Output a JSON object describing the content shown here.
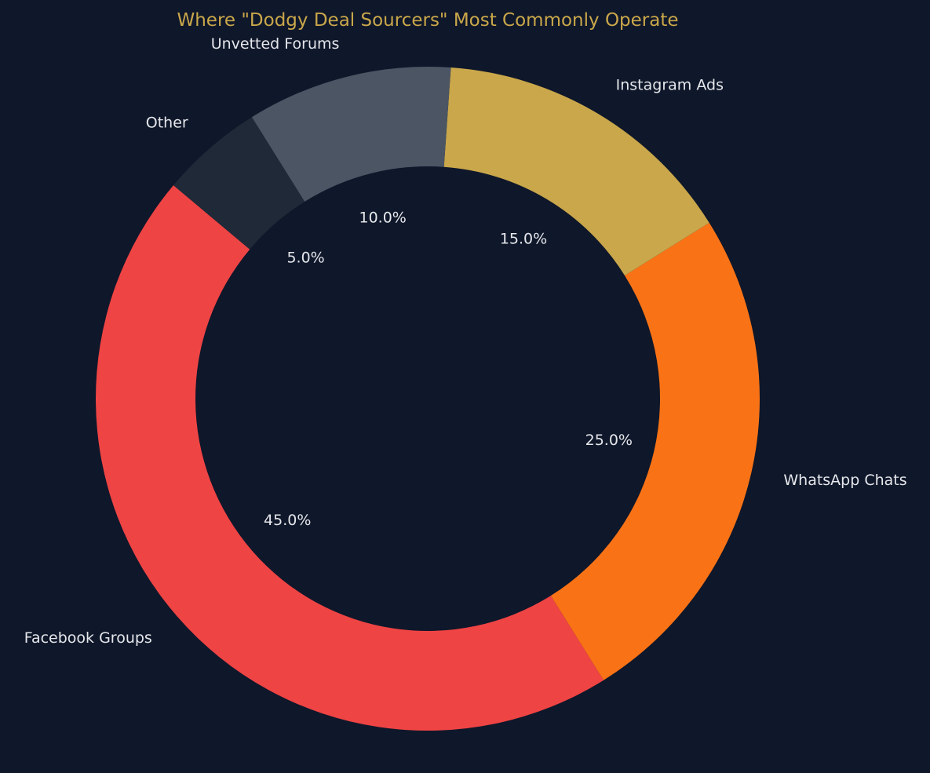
{
  "chart_data": {
    "type": "pie",
    "donut": true,
    "title": "Where \"Dodgy Deal Sourcers\" Most Commonly Operate",
    "start_angle_deg": 140,
    "direction": "counterclockwise",
    "slices": [
      {
        "label": "Facebook Groups",
        "value": 45,
        "pct_label": "45.0%",
        "color": "#ef4444"
      },
      {
        "label": "WhatsApp Chats",
        "value": 25,
        "pct_label": "25.0%",
        "color": "#f97316"
      },
      {
        "label": "Instagram Ads",
        "value": 15,
        "pct_label": "15.0%",
        "color": "#c9a74a"
      },
      {
        "label": "Unvetted Forums",
        "value": 10,
        "pct_label": "10.0%",
        "color": "#4b5563"
      },
      {
        "label": "Other",
        "value": 5,
        "pct_label": "5.0%",
        "color": "#1f2937"
      }
    ]
  },
  "colors": {
    "background": "#0f172a",
    "title": "#c9a74a",
    "label_text": "#e5e7eb"
  }
}
